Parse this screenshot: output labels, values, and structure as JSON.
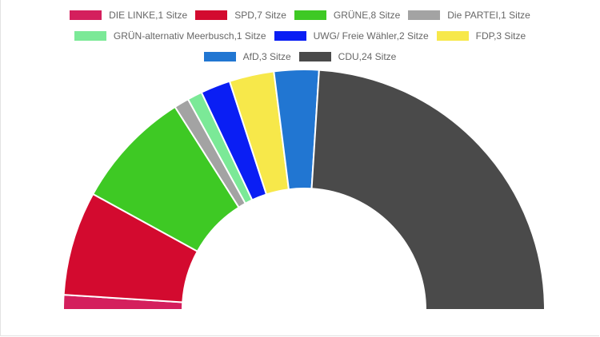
{
  "chart_data": {
    "type": "pie",
    "variant": "half-doughnut",
    "title": "",
    "legend_position": "top",
    "series": [
      {
        "name": "DIE LINKE,1 Sitze",
        "value": 1,
        "color": "#d41f5d"
      },
      {
        "name": "SPD,7 Sitze",
        "value": 7,
        "color": "#d30a2f"
      },
      {
        "name": "GRÜNE,8 Sitze",
        "value": 8,
        "color": "#3ec924"
      },
      {
        "name": "Die PARTEI,1 Sitze",
        "value": 1,
        "color": "#a3a3a3"
      },
      {
        "name": "GRÜN-alternativ Meerbusch,1 Sitze",
        "value": 1,
        "color": "#7be997"
      },
      {
        "name": "UWG/ Freie Wähler,2 Sitze",
        "value": 2,
        "color": "#0a1ef4"
      },
      {
        "name": "FDP,3 Sitze",
        "value": 3,
        "color": "#f7e84a"
      },
      {
        "name": "AfD,3 Sitze",
        "value": 3,
        "color": "#2176d2"
      },
      {
        "name": "CDU,24 Sitze",
        "value": 24,
        "color": "#4a4a4a"
      }
    ],
    "legend_rows": [
      [
        0,
        1,
        2,
        3
      ],
      [
        4,
        5,
        6
      ],
      [
        7,
        8
      ]
    ]
  }
}
